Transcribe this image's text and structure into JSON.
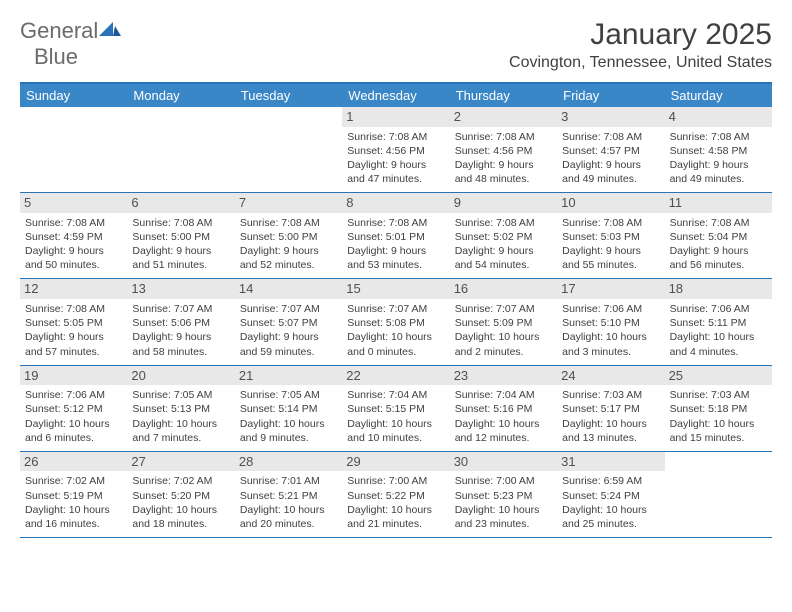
{
  "logo": {
    "text1": "General",
    "text2": "Blue"
  },
  "title": "January 2025",
  "location": "Covington, Tennessee, United States",
  "colors": {
    "header_blue": "#3a87c8",
    "border_blue": "#2a73b8",
    "daynum_bg": "#e8e8e8",
    "text": "#404040",
    "logo_gray": "#6b6b6b"
  },
  "weekdays": [
    "Sunday",
    "Monday",
    "Tuesday",
    "Wednesday",
    "Thursday",
    "Friday",
    "Saturday"
  ],
  "weeks": [
    [
      null,
      null,
      null,
      {
        "n": "1",
        "sr": "7:08 AM",
        "ss": "4:56 PM",
        "dl": "9 hours and 47 minutes."
      },
      {
        "n": "2",
        "sr": "7:08 AM",
        "ss": "4:56 PM",
        "dl": "9 hours and 48 minutes."
      },
      {
        "n": "3",
        "sr": "7:08 AM",
        "ss": "4:57 PM",
        "dl": "9 hours and 49 minutes."
      },
      {
        "n": "4",
        "sr": "7:08 AM",
        "ss": "4:58 PM",
        "dl": "9 hours and 49 minutes."
      }
    ],
    [
      {
        "n": "5",
        "sr": "7:08 AM",
        "ss": "4:59 PM",
        "dl": "9 hours and 50 minutes."
      },
      {
        "n": "6",
        "sr": "7:08 AM",
        "ss": "5:00 PM",
        "dl": "9 hours and 51 minutes."
      },
      {
        "n": "7",
        "sr": "7:08 AM",
        "ss": "5:00 PM",
        "dl": "9 hours and 52 minutes."
      },
      {
        "n": "8",
        "sr": "7:08 AM",
        "ss": "5:01 PM",
        "dl": "9 hours and 53 minutes."
      },
      {
        "n": "9",
        "sr": "7:08 AM",
        "ss": "5:02 PM",
        "dl": "9 hours and 54 minutes."
      },
      {
        "n": "10",
        "sr": "7:08 AM",
        "ss": "5:03 PM",
        "dl": "9 hours and 55 minutes."
      },
      {
        "n": "11",
        "sr": "7:08 AM",
        "ss": "5:04 PM",
        "dl": "9 hours and 56 minutes."
      }
    ],
    [
      {
        "n": "12",
        "sr": "7:08 AM",
        "ss": "5:05 PM",
        "dl": "9 hours and 57 minutes."
      },
      {
        "n": "13",
        "sr": "7:07 AM",
        "ss": "5:06 PM",
        "dl": "9 hours and 58 minutes."
      },
      {
        "n": "14",
        "sr": "7:07 AM",
        "ss": "5:07 PM",
        "dl": "9 hours and 59 minutes."
      },
      {
        "n": "15",
        "sr": "7:07 AM",
        "ss": "5:08 PM",
        "dl": "10 hours and 0 minutes."
      },
      {
        "n": "16",
        "sr": "7:07 AM",
        "ss": "5:09 PM",
        "dl": "10 hours and 2 minutes."
      },
      {
        "n": "17",
        "sr": "7:06 AM",
        "ss": "5:10 PM",
        "dl": "10 hours and 3 minutes."
      },
      {
        "n": "18",
        "sr": "7:06 AM",
        "ss": "5:11 PM",
        "dl": "10 hours and 4 minutes."
      }
    ],
    [
      {
        "n": "19",
        "sr": "7:06 AM",
        "ss": "5:12 PM",
        "dl": "10 hours and 6 minutes."
      },
      {
        "n": "20",
        "sr": "7:05 AM",
        "ss": "5:13 PM",
        "dl": "10 hours and 7 minutes."
      },
      {
        "n": "21",
        "sr": "7:05 AM",
        "ss": "5:14 PM",
        "dl": "10 hours and 9 minutes."
      },
      {
        "n": "22",
        "sr": "7:04 AM",
        "ss": "5:15 PM",
        "dl": "10 hours and 10 minutes."
      },
      {
        "n": "23",
        "sr": "7:04 AM",
        "ss": "5:16 PM",
        "dl": "10 hours and 12 minutes."
      },
      {
        "n": "24",
        "sr": "7:03 AM",
        "ss": "5:17 PM",
        "dl": "10 hours and 13 minutes."
      },
      {
        "n": "25",
        "sr": "7:03 AM",
        "ss": "5:18 PM",
        "dl": "10 hours and 15 minutes."
      }
    ],
    [
      {
        "n": "26",
        "sr": "7:02 AM",
        "ss": "5:19 PM",
        "dl": "10 hours and 16 minutes."
      },
      {
        "n": "27",
        "sr": "7:02 AM",
        "ss": "5:20 PM",
        "dl": "10 hours and 18 minutes."
      },
      {
        "n": "28",
        "sr": "7:01 AM",
        "ss": "5:21 PM",
        "dl": "10 hours and 20 minutes."
      },
      {
        "n": "29",
        "sr": "7:00 AM",
        "ss": "5:22 PM",
        "dl": "10 hours and 21 minutes."
      },
      {
        "n": "30",
        "sr": "7:00 AM",
        "ss": "5:23 PM",
        "dl": "10 hours and 23 minutes."
      },
      {
        "n": "31",
        "sr": "6:59 AM",
        "ss": "5:24 PM",
        "dl": "10 hours and 25 minutes."
      },
      null
    ]
  ],
  "labels": {
    "sunrise": "Sunrise: ",
    "sunset": "Sunset: ",
    "daylight": "Daylight: "
  }
}
